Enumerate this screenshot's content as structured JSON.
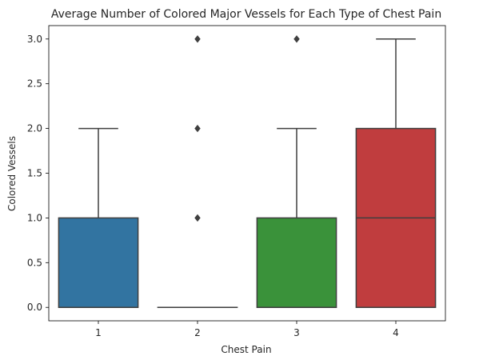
{
  "chart_data": {
    "type": "box",
    "title": "Average Number of Colored Major Vessels for Each Type of Chest Pain",
    "xlabel": "Chest Pain",
    "ylabel": "Colored Vessels",
    "categories": [
      "1",
      "2",
      "3",
      "4"
    ],
    "ylim": [
      -0.15,
      3.15
    ],
    "y_ticks": [
      "0.0",
      "0.5",
      "1.0",
      "1.5",
      "2.0",
      "2.5",
      "3.0"
    ],
    "grid": false,
    "boxes": [
      {
        "category": "1",
        "color": "#3274a1",
        "q1": 0,
        "median": 0,
        "q3": 1,
        "whisker_low": 0,
        "whisker_high": 2,
        "outliers": []
      },
      {
        "category": "2",
        "color": "#e1812c",
        "q1": 0,
        "median": 0,
        "q3": 0,
        "whisker_low": 0,
        "whisker_high": 0,
        "outliers": [
          1,
          2,
          3
        ]
      },
      {
        "category": "3",
        "color": "#3a923a",
        "q1": 0,
        "median": 0,
        "q3": 1,
        "whisker_low": 0,
        "whisker_high": 2,
        "outliers": [
          3
        ]
      },
      {
        "category": "4",
        "color": "#c03d3e",
        "q1": 0,
        "median": 1,
        "q3": 2,
        "whisker_low": 0,
        "whisker_high": 3,
        "outliers": []
      }
    ]
  }
}
